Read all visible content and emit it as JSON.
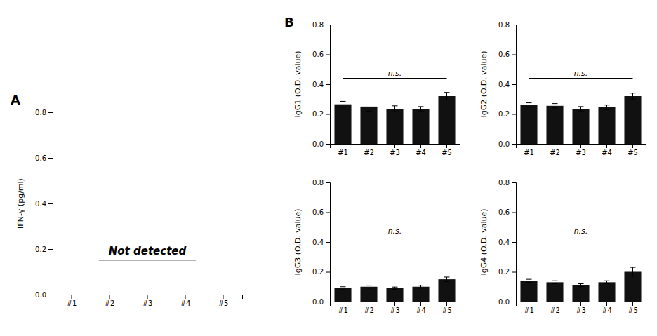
{
  "chart_data": [
    {
      "type": "bar",
      "title": "A",
      "ylabel": "IFN-γ (pg/ml)",
      "categories": [
        "#1",
        "#2",
        "#3",
        "#4",
        "#5"
      ],
      "ylim": [
        0,
        0.8
      ],
      "yticks": [
        {
          "value": 0,
          "label": "0.0"
        },
        0.2,
        0.4,
        0.6,
        0.8
      ],
      "annotations": [
        "Not detected"
      ]
    },
    {
      "type": "bar",
      "title": "B",
      "ylabel": "IgG1 (O.D. value)",
      "categories": [
        "#1",
        "#2",
        "#3",
        "#4",
        "#5"
      ],
      "values": [
        0.265,
        0.25,
        0.235,
        0.235,
        0.32
      ],
      "errors": [
        0.02,
        0.03,
        0.02,
        0.015,
        0.025
      ],
      "color": "#111111",
      "ylim": [
        0,
        0.8
      ],
      "yticks": [
        {
          "value": 0,
          "label": "0.0"
        },
        0.2,
        0.4,
        0.6,
        0.8
      ],
      "annotations": [
        "n.s."
      ]
    },
    {
      "type": "bar",
      "ylabel": "IgG2 (O.D. value)",
      "categories": [
        "#1",
        "#2",
        "#3",
        "#4",
        "#5"
      ],
      "values": [
        0.26,
        0.255,
        0.235,
        0.245,
        0.32
      ],
      "errors": [
        0.015,
        0.015,
        0.015,
        0.015,
        0.02
      ],
      "color": "#111111",
      "ylim": [
        0,
        0.8
      ],
      "yticks": [
        {
          "value": 0,
          "label": "0.0"
        },
        0.2,
        0.4,
        0.6,
        0.8
      ],
      "annotations": [
        "n.s."
      ]
    },
    {
      "type": "bar",
      "ylabel": "IgG3 (O.D. value)",
      "categories": [
        "#1",
        "#2",
        "#3",
        "#4",
        "#5"
      ],
      "values": [
        0.09,
        0.1,
        0.09,
        0.1,
        0.15
      ],
      "errors": [
        0.01,
        0.01,
        0.008,
        0.01,
        0.015
      ],
      "color": "#111111",
      "ylim": [
        0,
        0.8
      ],
      "yticks": [
        {
          "value": 0,
          "label": "0.0"
        },
        0.2,
        0.4,
        0.6,
        0.8
      ],
      "annotations": [
        "n.s."
      ]
    },
    {
      "type": "bar",
      "ylabel": "IgG4 (O.D. value)",
      "categories": [
        "#1",
        "#2",
        "#3",
        "#4",
        "#5"
      ],
      "values": [
        0.14,
        0.13,
        0.11,
        0.13,
        0.2
      ],
      "errors": [
        0.01,
        0.01,
        0.01,
        0.01,
        0.03
      ],
      "color": "#111111",
      "ylim": [
        0,
        0.8
      ],
      "yticks": [
        {
          "value": 0,
          "label": "0.0"
        },
        0.2,
        0.4,
        0.6,
        0.8
      ],
      "annotations": [
        "n.s."
      ]
    }
  ]
}
